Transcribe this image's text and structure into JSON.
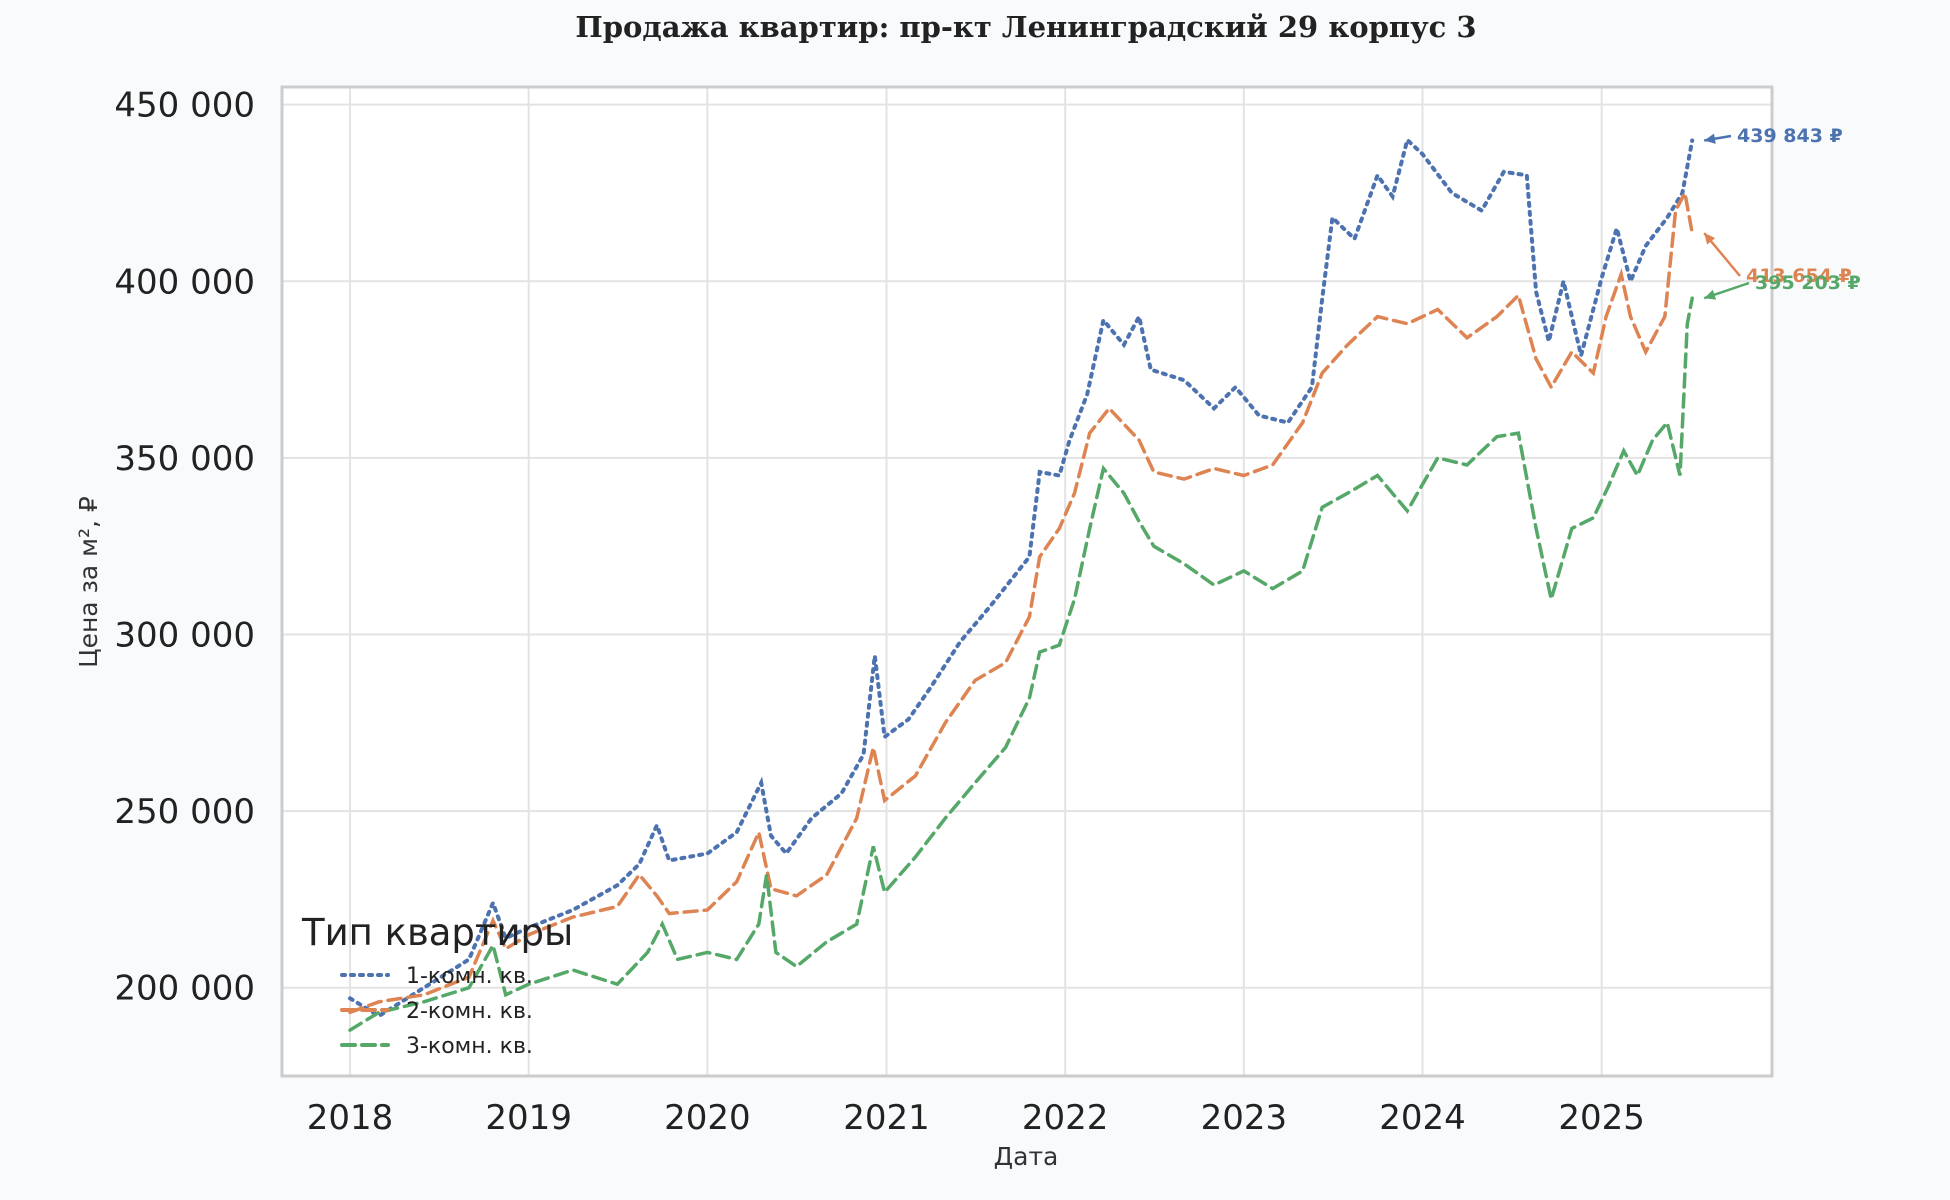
{
  "chart_data": {
    "type": "line",
    "title": "Продажа квартир: пр-кт Ленинградский 29 корпус 3",
    "xlabel": "Дата",
    "ylabel": "Цена за м², ₽",
    "x_ticks": [
      "2018",
      "2019",
      "2020",
      "2021",
      "2022",
      "2023",
      "2024",
      "2025"
    ],
    "y_ticks": [
      "200 000",
      "250 000",
      "300 000",
      "350 000",
      "400 000",
      "450 000"
    ],
    "ylim": [
      175000,
      455000
    ],
    "xlim": [
      "2017-08-15",
      "2025-12-15"
    ],
    "grid": true,
    "legend": {
      "title": "Тип квартиры",
      "placement": "lower-left"
    },
    "series": [
      {
        "name": "1-комн. кв.",
        "color": "#4c72b0",
        "style": "dotted",
        "end_label": "439 843 ₽",
        "points": [
          [
            "2018-01-01",
            197000
          ],
          [
            "2018-03-01",
            192000
          ],
          [
            "2018-06-01",
            200000
          ],
          [
            "2018-09-01",
            208000
          ],
          [
            "2018-10-20",
            224000
          ],
          [
            "2018-11-15",
            214000
          ],
          [
            "2019-01-01",
            217000
          ],
          [
            "2019-04-01",
            222000
          ],
          [
            "2019-07-01",
            229000
          ],
          [
            "2019-08-15",
            235000
          ],
          [
            "2019-09-20",
            246000
          ],
          [
            "2019-10-15",
            236000
          ],
          [
            "2020-01-01",
            238000
          ],
          [
            "2020-03-01",
            244000
          ],
          [
            "2020-04-20",
            258000
          ],
          [
            "2020-05-10",
            243000
          ],
          [
            "2020-06-10",
            238000
          ],
          [
            "2020-08-01",
            248000
          ],
          [
            "2020-10-01",
            255000
          ],
          [
            "2020-11-15",
            266000
          ],
          [
            "2020-12-08",
            294000
          ],
          [
            "2020-12-28",
            271000
          ],
          [
            "2021-02-15",
            276000
          ],
          [
            "2021-04-01",
            285000
          ],
          [
            "2021-06-01",
            298000
          ],
          [
            "2021-08-01",
            308000
          ],
          [
            "2021-10-20",
            322000
          ],
          [
            "2021-11-10",
            346000
          ],
          [
            "2021-12-20",
            345000
          ],
          [
            "2022-01-10",
            355000
          ],
          [
            "2022-02-15",
            368000
          ],
          [
            "2022-03-20",
            389000
          ],
          [
            "2022-05-01",
            382000
          ],
          [
            "2022-06-01",
            390000
          ],
          [
            "2022-06-25",
            375000
          ],
          [
            "2022-09-01",
            372000
          ],
          [
            "2022-11-01",
            364000
          ],
          [
            "2022-12-15",
            370000
          ],
          [
            "2023-02-01",
            362000
          ],
          [
            "2023-04-01",
            360000
          ],
          [
            "2023-05-20",
            370000
          ],
          [
            "2023-06-10",
            395000
          ],
          [
            "2023-07-01",
            418000
          ],
          [
            "2023-08-15",
            412000
          ],
          [
            "2023-10-01",
            430000
          ],
          [
            "2023-11-01",
            424000
          ],
          [
            "2023-12-01",
            440000
          ],
          [
            "2024-01-01",
            436000
          ],
          [
            "2024-03-01",
            425000
          ],
          [
            "2024-05-01",
            420000
          ],
          [
            "2024-06-15",
            431000
          ],
          [
            "2024-08-01",
            430000
          ],
          [
            "2024-08-20",
            397000
          ],
          [
            "2024-09-15",
            383000
          ],
          [
            "2024-10-15",
            400000
          ],
          [
            "2024-11-20",
            379000
          ],
          [
            "2025-01-01",
            401000
          ],
          [
            "2025-02-01",
            415000
          ],
          [
            "2025-03-01",
            400000
          ],
          [
            "2025-04-01",
            410000
          ],
          [
            "2025-05-15",
            418000
          ],
          [
            "2025-06-15",
            425000
          ],
          [
            "2025-07-05",
            439843
          ]
        ]
      },
      {
        "name": "2-комн. кв.",
        "color": "#dd8452",
        "style": "dashed",
        "end_label": "413 654 ₽",
        "points": [
          [
            "2018-01-01",
            193000
          ],
          [
            "2018-03-01",
            196000
          ],
          [
            "2018-06-01",
            198000
          ],
          [
            "2018-09-01",
            203000
          ],
          [
            "2018-10-20",
            219000
          ],
          [
            "2018-11-15",
            211000
          ],
          [
            "2019-01-01",
            215000
          ],
          [
            "2019-04-01",
            220000
          ],
          [
            "2019-07-01",
            223000
          ],
          [
            "2019-08-15",
            232000
          ],
          [
            "2019-09-20",
            226000
          ],
          [
            "2019-10-15",
            221000
          ],
          [
            "2020-01-01",
            222000
          ],
          [
            "2020-03-01",
            230000
          ],
          [
            "2020-04-15",
            244000
          ],
          [
            "2020-05-10",
            228000
          ],
          [
            "2020-07-01",
            226000
          ],
          [
            "2020-09-01",
            232000
          ],
          [
            "2020-11-01",
            248000
          ],
          [
            "2020-12-05",
            268000
          ],
          [
            "2020-12-28",
            253000
          ],
          [
            "2021-03-01",
            260000
          ],
          [
            "2021-05-01",
            275000
          ],
          [
            "2021-07-01",
            287000
          ],
          [
            "2021-09-01",
            292000
          ],
          [
            "2021-10-20",
            305000
          ],
          [
            "2021-11-10",
            322000
          ],
          [
            "2021-12-20",
            330000
          ],
          [
            "2022-01-20",
            340000
          ],
          [
            "2022-02-20",
            357000
          ],
          [
            "2022-04-01",
            364000
          ],
          [
            "2022-06-01",
            355000
          ],
          [
            "2022-07-01",
            346000
          ],
          [
            "2022-09-01",
            344000
          ],
          [
            "2022-11-01",
            347000
          ],
          [
            "2023-01-01",
            345000
          ],
          [
            "2023-03-01",
            348000
          ],
          [
            "2023-05-01",
            360000
          ],
          [
            "2023-06-10",
            374000
          ],
          [
            "2023-08-01",
            382000
          ],
          [
            "2023-10-01",
            390000
          ],
          [
            "2023-12-01",
            388000
          ],
          [
            "2024-02-01",
            392000
          ],
          [
            "2024-04-01",
            384000
          ],
          [
            "2024-06-01",
            390000
          ],
          [
            "2024-07-15",
            396000
          ],
          [
            "2024-08-20",
            378000
          ],
          [
            "2024-09-20",
            370000
          ],
          [
            "2024-11-01",
            380000
          ],
          [
            "2024-12-15",
            374000
          ],
          [
            "2025-01-10",
            390000
          ],
          [
            "2025-02-10",
            402000
          ],
          [
            "2025-03-01",
            390000
          ],
          [
            "2025-04-01",
            380000
          ],
          [
            "2025-05-10",
            390000
          ],
          [
            "2025-06-01",
            420000
          ],
          [
            "2025-06-20",
            425000
          ],
          [
            "2025-07-05",
            413654
          ]
        ]
      },
      {
        "name": "3-комн. кв.",
        "color": "#55a868",
        "style": "dashed",
        "end_label": "395 203 ₽",
        "points": [
          [
            "2018-01-01",
            188000
          ],
          [
            "2018-03-01",
            193000
          ],
          [
            "2018-06-01",
            196000
          ],
          [
            "2018-09-01",
            200000
          ],
          [
            "2018-10-20",
            212000
          ],
          [
            "2018-11-15",
            198000
          ],
          [
            "2019-01-01",
            201000
          ],
          [
            "2019-04-01",
            205000
          ],
          [
            "2019-07-01",
            201000
          ],
          [
            "2019-09-01",
            210000
          ],
          [
            "2019-10-01",
            218000
          ],
          [
            "2019-11-01",
            208000
          ],
          [
            "2020-01-01",
            210000
          ],
          [
            "2020-03-01",
            208000
          ],
          [
            "2020-04-15",
            218000
          ],
          [
            "2020-05-01",
            232000
          ],
          [
            "2020-05-20",
            210000
          ],
          [
            "2020-07-01",
            206000
          ],
          [
            "2020-09-01",
            213000
          ],
          [
            "2020-11-01",
            218000
          ],
          [
            "2020-12-05",
            240000
          ],
          [
            "2020-12-28",
            227000
          ],
          [
            "2021-03-01",
            237000
          ],
          [
            "2021-05-01",
            248000
          ],
          [
            "2021-07-01",
            258000
          ],
          [
            "2021-09-01",
            268000
          ],
          [
            "2021-10-20",
            282000
          ],
          [
            "2021-11-10",
            295000
          ],
          [
            "2021-12-20",
            297000
          ],
          [
            "2022-01-20",
            310000
          ],
          [
            "2022-02-20",
            330000
          ],
          [
            "2022-03-20",
            347000
          ],
          [
            "2022-05-01",
            340000
          ],
          [
            "2022-06-01",
            332000
          ],
          [
            "2022-07-01",
            325000
          ],
          [
            "2022-09-01",
            320000
          ],
          [
            "2022-11-01",
            314000
          ],
          [
            "2023-01-01",
            318000
          ],
          [
            "2023-03-01",
            313000
          ],
          [
            "2023-05-01",
            318000
          ],
          [
            "2023-06-10",
            336000
          ],
          [
            "2023-08-01",
            340000
          ],
          [
            "2023-10-01",
            345000
          ],
          [
            "2023-12-01",
            335000
          ],
          [
            "2024-02-01",
            350000
          ],
          [
            "2024-04-01",
            348000
          ],
          [
            "2024-06-01",
            356000
          ],
          [
            "2024-07-15",
            357000
          ],
          [
            "2024-08-20",
            330000
          ],
          [
            "2024-09-20",
            310000
          ],
          [
            "2024-11-01",
            330000
          ],
          [
            "2024-12-15",
            333000
          ],
          [
            "2025-01-15",
            342000
          ],
          [
            "2025-02-15",
            352000
          ],
          [
            "2025-03-15",
            345000
          ],
          [
            "2025-04-15",
            355000
          ],
          [
            "2025-05-15",
            360000
          ],
          [
            "2025-06-10",
            345000
          ],
          [
            "2025-06-25",
            388000
          ],
          [
            "2025-07-05",
            395203
          ]
        ]
      }
    ]
  }
}
